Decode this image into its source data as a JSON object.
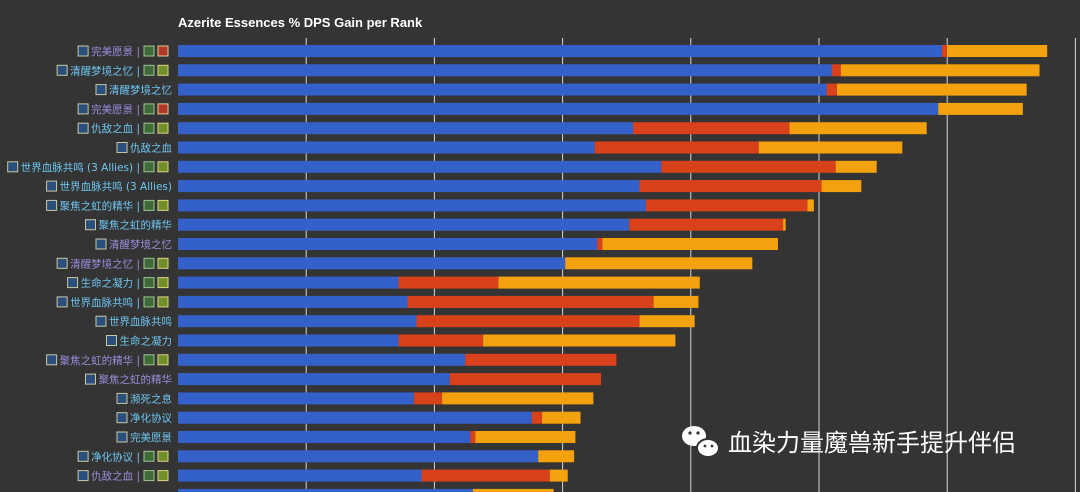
{
  "chart_data": {
    "type": "bar",
    "orientation": "horizontal",
    "stacked": true,
    "title": "Azerite Essences % DPS Gain per Rank",
    "xlim": [
      0,
      7
    ],
    "grid": true,
    "legend": "none",
    "series_colors": [
      "#3461c9",
      "#d9411a",
      "#f4a10e"
    ],
    "categories": [
      {
        "label": "完美愿景",
        "suffix": " | ",
        "color": "#9c8bdb",
        "trait_icons": true
      },
      {
        "label": "清醒梦境之忆",
        "suffix": " | ",
        "color": "#6ec6f2",
        "trait_icons": true
      },
      {
        "label": "清醒梦境之忆",
        "suffix": "",
        "color": "#6ec6f2",
        "trait_icons": false
      },
      {
        "label": "完美愿景",
        "suffix": " | ",
        "color": "#9c8bdb",
        "trait_icons": true
      },
      {
        "label": "仇敌之血",
        "suffix": " | ",
        "color": "#6ec6f2",
        "trait_icons": true
      },
      {
        "label": "仇敌之血",
        "suffix": "",
        "color": "#6ec6f2",
        "trait_icons": false
      },
      {
        "label": "世界血脉共鸣 (3 Allies)",
        "suffix": " | ",
        "color": "#6ec6f2",
        "trait_icons": true
      },
      {
        "label": "世界血脉共鸣 (3 Allies)",
        "suffix": "",
        "color": "#6ec6f2",
        "trait_icons": false
      },
      {
        "label": "聚焦之虹的精华",
        "suffix": " | ",
        "color": "#6ec6f2",
        "trait_icons": true
      },
      {
        "label": "聚焦之虹的精华",
        "suffix": "",
        "color": "#6ec6f2",
        "trait_icons": false
      },
      {
        "label": "清醒梦境之忆",
        "suffix": "",
        "color": "#9c8bdb",
        "trait_icons": false
      },
      {
        "label": "清醒梦境之忆",
        "suffix": " | ",
        "color": "#9c8bdb",
        "trait_icons": true
      },
      {
        "label": "生命之凝力",
        "suffix": " | ",
        "color": "#6ec6f2",
        "trait_icons": true
      },
      {
        "label": "世界血脉共鸣",
        "suffix": " | ",
        "color": "#6ec6f2",
        "trait_icons": true
      },
      {
        "label": "世界血脉共鸣",
        "suffix": "",
        "color": "#6ec6f2",
        "trait_icons": false
      },
      {
        "label": "生命之凝力",
        "suffix": "",
        "color": "#6ec6f2",
        "trait_icons": false
      },
      {
        "label": "聚焦之虹的精华",
        "suffix": " | ",
        "color": "#9c8bdb",
        "trait_icons": true
      },
      {
        "label": "聚焦之虹的精华",
        "suffix": "",
        "color": "#9c8bdb",
        "trait_icons": false
      },
      {
        "label": "濒死之息",
        "suffix": "",
        "color": "#6ec6f2",
        "trait_icons": false
      },
      {
        "label": "净化协议",
        "suffix": "",
        "color": "#6ec6f2",
        "trait_icons": false
      },
      {
        "label": "完美愿景",
        "suffix": "",
        "color": "#6ec6f2",
        "trait_icons": false
      },
      {
        "label": "净化协议",
        "suffix": " | ",
        "color": "#6ec6f2",
        "trait_icons": true
      },
      {
        "label": "仇敌之血",
        "suffix": " | ",
        "color": "#9c8bdb",
        "trait_icons": true
      },
      {
        "label": "",
        "suffix": "",
        "color": "#6ec6f2",
        "trait_icons": false
      }
    ],
    "series": [
      {
        "values": [
          5.96,
          5.1,
          5.06,
          5.93,
          3.55,
          3.25,
          3.77,
          3.6,
          3.65,
          3.52,
          3.27,
          3.02,
          1.72,
          1.79,
          1.86,
          1.72,
          2.24,
          2.12,
          1.84,
          2.76,
          2.28,
          2.81,
          1.9,
          2.3
        ]
      },
      {
        "values": [
          0.04,
          0.07,
          0.08,
          0.0,
          1.22,
          1.28,
          1.36,
          1.42,
          1.26,
          1.2,
          0.04,
          0.0,
          0.78,
          1.92,
          1.74,
          0.66,
          1.18,
          1.18,
          0.22,
          0.08,
          0.04,
          0.0,
          1.0,
          0.0
        ]
      },
      {
        "values": [
          0.78,
          1.55,
          1.48,
          0.66,
          1.07,
          1.12,
          0.32,
          0.31,
          0.05,
          0.02,
          1.37,
          1.46,
          1.57,
          0.35,
          0.43,
          1.5,
          0.0,
          0.0,
          1.18,
          0.3,
          0.78,
          0.28,
          0.14,
          0.63
        ]
      }
    ]
  },
  "watermark": "血染力量魔兽新手提升伴侣"
}
